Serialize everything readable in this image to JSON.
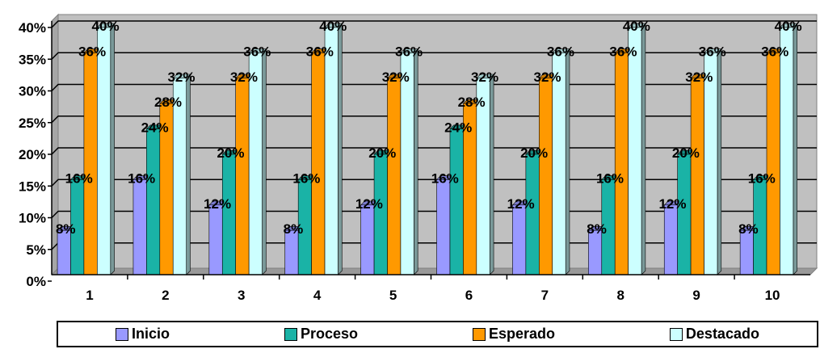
{
  "chart_data": {
    "type": "bar",
    "title": "",
    "xlabel": "",
    "ylabel": "",
    "categories": [
      "1",
      "2",
      "3",
      "4",
      "5",
      "6",
      "7",
      "8",
      "9",
      "10"
    ],
    "series": [
      {
        "name": "Inicio",
        "color": "#9999ff",
        "values": [
          8,
          16,
          12,
          8,
          12,
          16,
          12,
          8,
          12,
          8
        ]
      },
      {
        "name": "Proceso",
        "color": "#1ab3a6",
        "values": [
          16,
          24,
          20,
          16,
          20,
          24,
          20,
          16,
          20,
          16
        ]
      },
      {
        "name": "Esperado",
        "color": "#ff9900",
        "values": [
          36,
          28,
          32,
          36,
          32,
          28,
          32,
          36,
          32,
          36
        ]
      },
      {
        "name": "Destacado",
        "color": "#ccffff",
        "values": [
          40,
          32,
          36,
          40,
          36,
          32,
          36,
          40,
          36,
          40
        ]
      }
    ],
    "value_format": "percent",
    "ylim": [
      0,
      40
    ],
    "yticks": [
      "0%",
      "5%",
      "10%",
      "15%",
      "20%",
      "25%",
      "30%",
      "35%",
      "40%"
    ],
    "grid": true,
    "legend_position": "bottom",
    "background_color": "#c0c0c0"
  }
}
